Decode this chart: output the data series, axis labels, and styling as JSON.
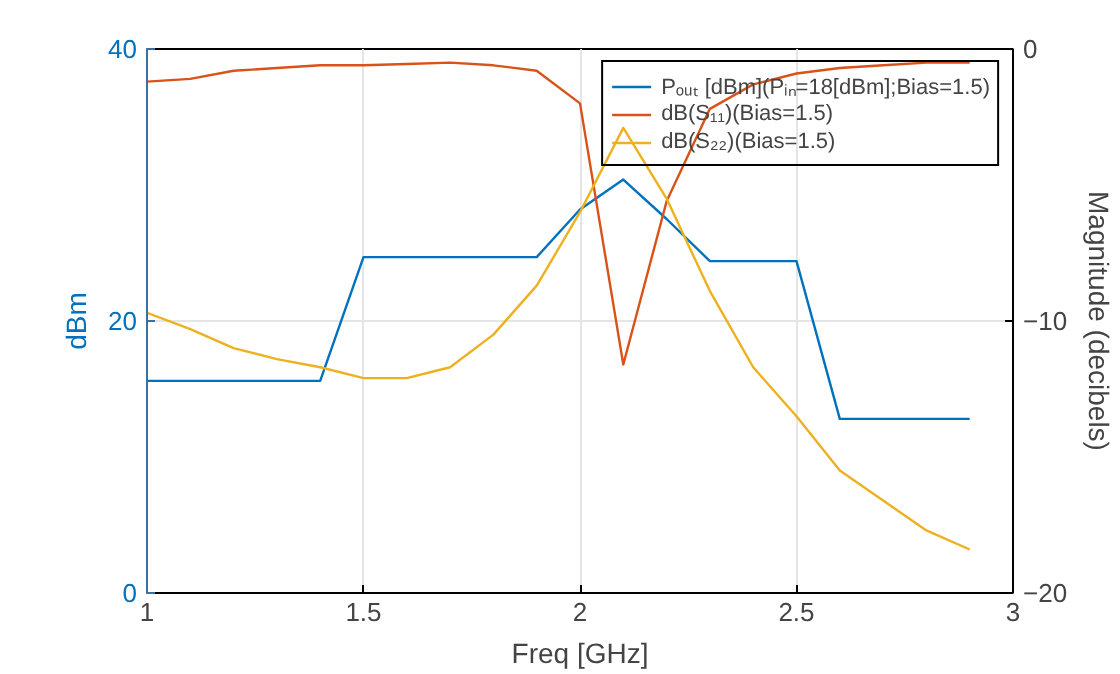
{
  "chart_data": {
    "type": "line",
    "xlabel": "Freq [GHz]",
    "ylabel": "dBm",
    "y2label": "Magnitude (decibels)",
    "x": [
      1.0,
      1.1,
      1.2,
      1.3,
      1.4,
      1.5,
      1.6,
      1.7,
      1.8,
      1.9,
      2.0,
      2.1,
      2.2,
      2.3,
      2.4,
      2.5,
      2.6,
      2.7,
      2.8,
      2.9
    ],
    "series": [
      {
        "name": "Pₒᵤₜ [dBm](Pᵢₙ=18[dBm];Bias=1.5)",
        "color": "#0072bd",
        "values": [
          15.6,
          15.6,
          15.6,
          15.6,
          15.6,
          24.7,
          24.7,
          24.7,
          24.7,
          24.7,
          28.2,
          30.4,
          27.5,
          24.4,
          24.4,
          24.4,
          12.8,
          12.8,
          12.8,
          12.8
        ]
      },
      {
        "name": "dB(S₁₁)(Bias=1.5)",
        "color": "#d95319",
        "axis": "y2",
        "values": [
          -1.2,
          -1.1,
          -0.8,
          -0.7,
          -0.6,
          -0.6,
          -0.55,
          -0.5,
          -0.6,
          -0.8,
          -2.0,
          -11.6,
          -5.6,
          -2.2,
          -1.3,
          -0.9,
          -0.7,
          -0.6,
          -0.5,
          -0.5
        ]
      },
      {
        "name": "dB(S₂₂)(Bias=1.5)",
        "color": "#edb120",
        "axis": "y2",
        "values": [
          -9.7,
          -10.3,
          -11.0,
          -11.4,
          -11.7,
          -12.1,
          -12.1,
          -11.7,
          -10.5,
          -8.7,
          -6.0,
          -2.9,
          -5.5,
          -8.9,
          -11.7,
          -13.5,
          -15.5,
          -16.6,
          -17.7,
          -18.4
        ]
      }
    ],
    "xlim": [
      1,
      3
    ],
    "xticks": [
      1,
      1.5,
      2,
      2.5,
      3
    ],
    "ylim": [
      0,
      40
    ],
    "yticks": [
      0,
      20,
      40
    ],
    "y2lim": [
      -20,
      0
    ],
    "y2ticks": [
      -20,
      -10,
      0
    ],
    "grid": true,
    "legend": "top right",
    "marker": "none",
    "line_style": "solid"
  }
}
